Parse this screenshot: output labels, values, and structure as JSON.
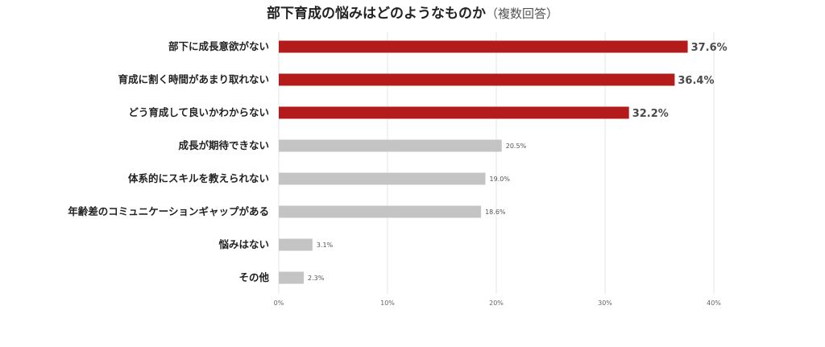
{
  "chart_data": {
    "type": "bar",
    "orientation": "horizontal",
    "title": "部下育成の悩みはどのようなものか",
    "subtitle": "（複数回答）",
    "categories": [
      "部下に成長意欲がない",
      "育成に割く時間があまり取れない",
      "どう育成して良いかわからない",
      "成長が期待できない",
      "体系的にスキルを教えられない",
      "年齢差のコミュニケーションギャップがある",
      "悩みはない",
      "その他"
    ],
    "values": [
      37.6,
      36.4,
      32.2,
      20.5,
      19.0,
      18.6,
      3.1,
      2.3
    ],
    "value_labels": [
      "37.6%",
      "36.4%",
      "32.2%",
      "20.5%",
      "19.0%",
      "18.6%",
      "3.1%",
      "2.3%"
    ],
    "highlighted": [
      true,
      true,
      true,
      false,
      false,
      false,
      false,
      false
    ],
    "xlim": [
      0,
      40
    ],
    "xticks": [
      0,
      10,
      20,
      30,
      40
    ],
    "xtick_labels": [
      "0%",
      "10%",
      "20%",
      "30%",
      "40%"
    ],
    "grid": true,
    "colors": {
      "highlight": "#b41c1c",
      "normal": "#c4c4c4",
      "grid": "#e6e6e6"
    }
  }
}
